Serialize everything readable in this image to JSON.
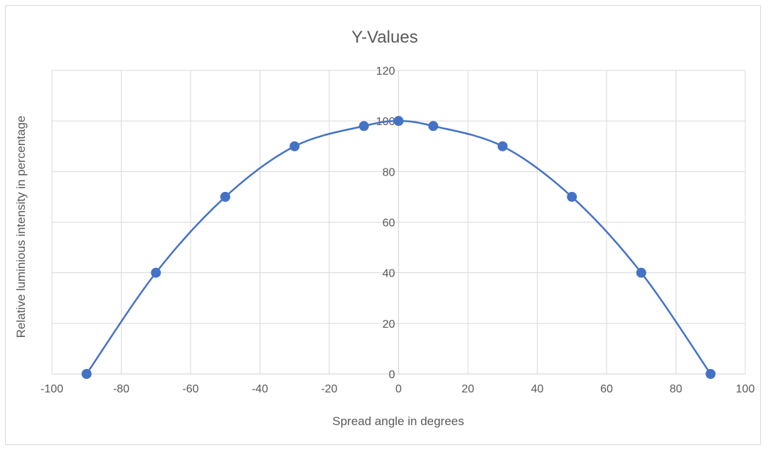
{
  "chart_data": {
    "type": "scatter",
    "title": "Y-Values",
    "xlabel": "Spread angle in degrees",
    "ylabel": "Relative luminious intensity in percentage",
    "xlim": [
      -100,
      100
    ],
    "ylim": [
      0,
      120
    ],
    "x_ticks": [
      -100,
      -80,
      -60,
      -40,
      -20,
      0,
      20,
      40,
      60,
      80,
      100
    ],
    "y_ticks": [
      0,
      20,
      40,
      60,
      80,
      100,
      120
    ],
    "grid": true,
    "smooth_line": true,
    "series": [
      {
        "x": [
          -90,
          -70,
          -50,
          -30,
          -10,
          0,
          10,
          30,
          50,
          70,
          90
        ],
        "y": [
          0,
          40,
          70,
          90,
          98,
          100,
          98,
          90,
          70,
          40,
          0
        ]
      }
    ],
    "colors": {
      "series": "#4472c4",
      "grid": "#d9d9d9",
      "text": "#595959"
    }
  }
}
